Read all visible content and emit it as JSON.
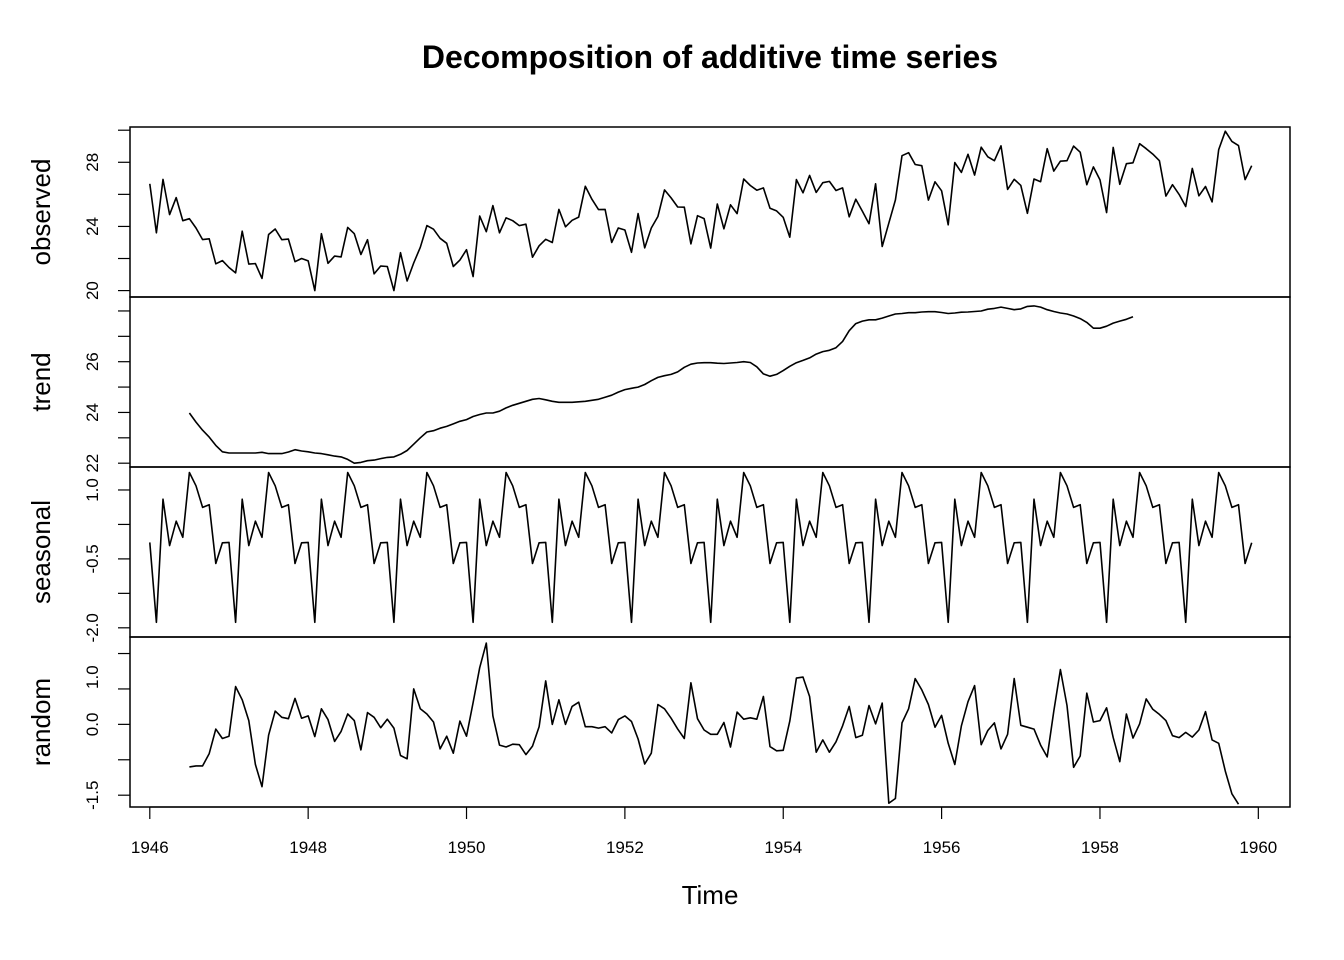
{
  "chart_data": {
    "type": "line",
    "title": "Decomposition of additive time series",
    "xlabel": "Time",
    "x_start": 1946,
    "frequency": 12,
    "xlim": [
      1945.75,
      1960.4
    ],
    "xticks": [
      1946,
      1948,
      1950,
      1952,
      1954,
      1956,
      1958,
      1960
    ],
    "panels": [
      {
        "name": "observed",
        "ylim": [
          19.6,
          30.2
        ],
        "yticks": [
          20,
          24,
          28
        ],
        "values": [
          26.66,
          23.6,
          26.93,
          24.74,
          25.8,
          24.36,
          24.48,
          23.9,
          23.18,
          23.23,
          21.67,
          21.87,
          21.44,
          21.1,
          23.7,
          21.65,
          21.68,
          20.76,
          23.5,
          23.84,
          23.17,
          23.21,
          21.8,
          22.0,
          21.85,
          20.0,
          23.55,
          21.7,
          22.15,
          22.1,
          23.94,
          23.55,
          22.25,
          23.17,
          21.04,
          21.53,
          21.5,
          20.0,
          22.36,
          20.6,
          21.72,
          22.7,
          24.05,
          23.83,
          23.26,
          22.95,
          21.5,
          21.9,
          22.55,
          20.87,
          24.65,
          23.67,
          25.3,
          23.6,
          24.54,
          24.36,
          24.05,
          24.14,
          22.08,
          22.79,
          23.2,
          23.0,
          25.06,
          23.98,
          24.38,
          24.58,
          26.5,
          25.7,
          25.05,
          25.06,
          23.0,
          23.9,
          23.78,
          22.39,
          24.8,
          22.66,
          23.9,
          24.62,
          26.28,
          25.78,
          25.21,
          25.2,
          22.91,
          24.67,
          24.49,
          22.65,
          25.4,
          23.85,
          25.35,
          24.8,
          26.96,
          26.55,
          26.26,
          26.4,
          25.13,
          24.97,
          24.57,
          23.33,
          26.92,
          26.1,
          27.18,
          26.12,
          26.73,
          26.81,
          26.24,
          26.4,
          24.6,
          25.7,
          24.95,
          24.17,
          26.66,
          22.75,
          24.2,
          25.65,
          28.41,
          28.6,
          27.86,
          27.79,
          25.64,
          26.78,
          26.22,
          24.1,
          27.98,
          27.37,
          28.5,
          27.2,
          28.94,
          28.34,
          28.1,
          29.03,
          26.31,
          26.94,
          26.56,
          24.82,
          26.96,
          26.79,
          28.85,
          27.45,
          28.07,
          28.1,
          29.01,
          28.63,
          26.6,
          27.71,
          26.9,
          24.86,
          28.93,
          26.63,
          27.91,
          27.97,
          29.16,
          28.85,
          28.51,
          28.1,
          25.89,
          26.6,
          26.0,
          25.24,
          27.62,
          25.91,
          26.49,
          25.53,
          28.79,
          29.94,
          29.3,
          29.04,
          26.92,
          27.79
        ]
      },
      {
        "name": "trend",
        "ylim": [
          21.85,
          28.55
        ],
        "yticks": [
          22,
          24,
          26
        ],
        "values": [
          null,
          null,
          null,
          null,
          null,
          null,
          23.98,
          23.62,
          23.3,
          23.03,
          22.7,
          22.45,
          22.4,
          22.4,
          22.4,
          22.4,
          22.4,
          22.43,
          22.38,
          22.38,
          22.38,
          22.44,
          22.53,
          22.48,
          22.45,
          22.4,
          22.38,
          22.33,
          22.28,
          22.25,
          22.15,
          22.0,
          22.03,
          22.1,
          22.12,
          22.18,
          22.23,
          22.25,
          22.35,
          22.5,
          22.75,
          23.0,
          23.23,
          23.28,
          23.38,
          23.45,
          23.55,
          23.65,
          23.72,
          23.84,
          23.92,
          23.98,
          23.98,
          24.05,
          24.18,
          24.28,
          24.36,
          24.44,
          24.52,
          24.55,
          24.5,
          24.44,
          24.4,
          24.4,
          24.4,
          24.42,
          24.44,
          24.48,
          24.52,
          24.6,
          24.68,
          24.8,
          24.9,
          24.95,
          25.0,
          25.1,
          25.25,
          25.38,
          25.45,
          25.5,
          25.6,
          25.78,
          25.9,
          25.95,
          25.96,
          25.96,
          25.94,
          25.93,
          25.95,
          25.97,
          26.0,
          25.97,
          25.8,
          25.52,
          25.43,
          25.5,
          25.65,
          25.82,
          25.96,
          26.05,
          26.15,
          26.3,
          26.4,
          26.45,
          26.55,
          26.8,
          27.22,
          27.5,
          27.6,
          27.65,
          27.65,
          27.72,
          27.8,
          27.88,
          27.9,
          27.93,
          27.93,
          27.96,
          27.97,
          27.97,
          27.94,
          27.9,
          27.92,
          27.95,
          27.96,
          27.98,
          28.0,
          28.07,
          28.1,
          28.15,
          28.1,
          28.05,
          28.08,
          28.18,
          28.2,
          28.15,
          28.05,
          27.98,
          27.92,
          27.88,
          27.8,
          27.7,
          27.55,
          27.32,
          27.32,
          27.4,
          27.52,
          27.6,
          27.67,
          27.77,
          null,
          null,
          null,
          null,
          null,
          null
        ]
      },
      {
        "name": "seasonal",
        "ylim": [
          -2.2,
          1.5
        ],
        "yticks": [
          -2.0,
          -0.5,
          1.0
        ],
        "tick_labels": [
          "-2.0",
          "-0.5",
          "1.0"
        ],
        "values": [
          -0.14,
          -1.88,
          0.8,
          -0.21,
          0.32,
          -0.03,
          1.38,
          1.09,
          0.62,
          0.68,
          -0.6,
          -0.15
        ],
        "repeat": 14
      },
      {
        "name": "random",
        "ylim": [
          -1.75,
          1.85
        ],
        "yticks": [
          -1.5,
          0.0,
          1.0
        ],
        "tick_labels": [
          "-1.5",
          "0.0",
          "1.0"
        ],
        "values": [
          null,
          null,
          null,
          null,
          null,
          null,
          -0.9,
          -0.88,
          -0.88,
          -0.62,
          -0.1,
          -0.3,
          -0.25,
          0.8,
          0.52,
          0.08,
          -0.85,
          -1.32,
          -0.23,
          0.28,
          0.15,
          0.12,
          0.55,
          0.13,
          0.18,
          -0.26,
          0.33,
          0.1,
          -0.36,
          -0.15,
          0.22,
          0.08,
          -0.54,
          0.25,
          0.15,
          -0.07,
          0.11,
          -0.08,
          -0.66,
          -0.73,
          0.75,
          0.33,
          0.22,
          0.05,
          -0.52,
          -0.25,
          -0.61,
          0.07,
          -0.25,
          0.46,
          1.2,
          1.72,
          0.18,
          -0.44,
          -0.48,
          -0.42,
          -0.43,
          -0.64,
          -0.46,
          -0.05,
          0.92,
          0.0,
          0.52,
          0.0,
          0.38,
          0.47,
          -0.05,
          -0.05,
          -0.08,
          -0.05,
          -0.18,
          0.1,
          0.18,
          0.06,
          -0.31,
          -0.84,
          -0.61,
          0.42,
          0.33,
          0.13,
          -0.1,
          -0.3,
          0.88,
          0.12,
          -0.12,
          -0.21,
          -0.21,
          0.04,
          -0.48,
          0.26,
          0.11,
          0.14,
          0.11,
          0.59,
          -0.47,
          -0.56,
          -0.55,
          0.07,
          0.98,
          1.0,
          0.59,
          -0.59,
          -0.33,
          -0.59,
          -0.37,
          -0.03,
          0.38,
          -0.28,
          -0.23,
          0.4,
          0.01,
          0.45,
          -1.67,
          -1.57,
          0.03,
          0.33,
          0.97,
          0.73,
          0.42,
          -0.06,
          0.19,
          -0.4,
          -0.85,
          -0.03,
          0.48,
          0.82,
          -0.43,
          -0.13,
          0.03,
          -0.52,
          -0.21,
          0.97,
          -0.02,
          -0.06,
          -0.1,
          -0.44,
          -0.69,
          0.28,
          1.16,
          0.4,
          -0.91,
          -0.67,
          0.66,
          0.05,
          0.08,
          0.35,
          -0.28,
          -0.79,
          0.22,
          -0.29,
          0.01,
          0.54,
          0.32,
          0.21,
          0.08,
          -0.24,
          -0.28,
          -0.17,
          -0.27,
          -0.12,
          0.27,
          -0.33,
          -0.4,
          -0.99,
          -1.47,
          -1.69,
          null,
          null
        ]
      }
    ]
  }
}
